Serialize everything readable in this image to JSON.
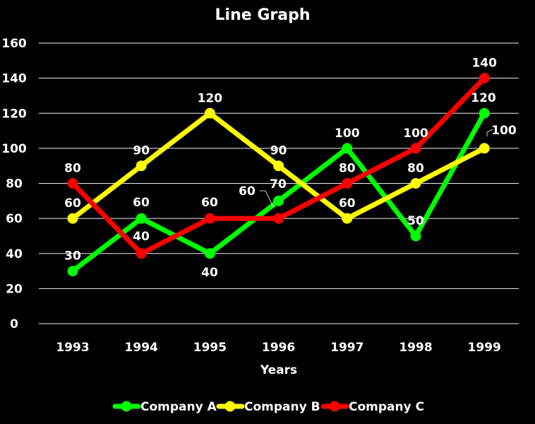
{
  "chart_data": {
    "type": "line",
    "title": "Line Graph",
    "xlabel": "Years",
    "ylabel": "",
    "categories": [
      "1993",
      "1994",
      "1995",
      "1996",
      "1997",
      "1998",
      "1999"
    ],
    "ylim": [
      0,
      160
    ],
    "yticks": [
      "0",
      "20",
      "40",
      "60",
      "80",
      "100",
      "120",
      "140",
      "160"
    ],
    "grid": true,
    "legend_position": "bottom",
    "series": [
      {
        "name": "Company A",
        "color": "#00ff00",
        "values": [
          30,
          60,
          40,
          70,
          100,
          50,
          120
        ]
      },
      {
        "name": "Company B",
        "color": "#ffff00",
        "values": [
          60,
          90,
          120,
          90,
          60,
          80,
          100
        ]
      },
      {
        "name": "Company C",
        "color": "#ff0000",
        "values": [
          80,
          40,
          60,
          60,
          80,
          100,
          140
        ]
      }
    ],
    "data_labels": [
      {
        "series": 0,
        "index": 0,
        "text": "30"
      },
      {
        "series": 0,
        "index": 1,
        "text": "60"
      },
      {
        "series": 0,
        "index": 2,
        "text": "40"
      },
      {
        "series": 0,
        "index": 3,
        "text": "70"
      },
      {
        "series": 0,
        "index": 4,
        "text": "100"
      },
      {
        "series": 0,
        "index": 5,
        "text": "50"
      },
      {
        "series": 0,
        "index": 6,
        "text": "120"
      },
      {
        "series": 1,
        "index": 0,
        "text": "60"
      },
      {
        "series": 1,
        "index": 1,
        "text": "90"
      },
      {
        "series": 1,
        "index": 2,
        "text": "120"
      },
      {
        "series": 1,
        "index": 3,
        "text": "90"
      },
      {
        "series": 1,
        "index": 4,
        "text": "60"
      },
      {
        "series": 1,
        "index": 5,
        "text": "80"
      },
      {
        "series": 1,
        "index": 6,
        "text": "100"
      },
      {
        "series": 2,
        "index": 0,
        "text": "80"
      },
      {
        "series": 2,
        "index": 1,
        "text": "40"
      },
      {
        "series": 2,
        "index": 2,
        "text": "60"
      },
      {
        "series": 2,
        "index": 3,
        "text": "60"
      },
      {
        "series": 2,
        "index": 4,
        "text": "80"
      },
      {
        "series": 2,
        "index": 5,
        "text": "100"
      },
      {
        "series": 2,
        "index": 6,
        "text": "140"
      }
    ]
  }
}
